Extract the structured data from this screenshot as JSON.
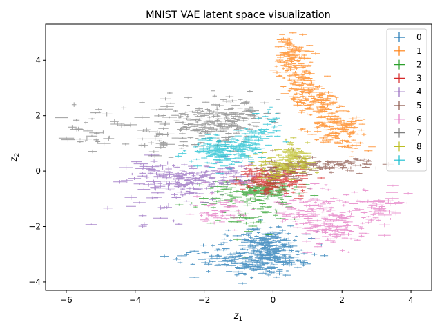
{
  "chart_data": {
    "type": "scatter",
    "title": "MNIST VAE latent space visualization",
    "xlabel_main": "z",
    "xlabel_sub": "1",
    "ylabel_main": "z",
    "ylabel_sub": "2",
    "xlim": [
      -6.6,
      4.6
    ],
    "ylim": [
      -4.3,
      5.3
    ],
    "xticks": [
      -6,
      -4,
      -2,
      0,
      2,
      4
    ],
    "yticks": [
      -4,
      -2,
      0,
      2,
      4
    ],
    "grid": false,
    "legend_position": "top-right",
    "marker": "errorbar-cross",
    "series": [
      {
        "name": "0",
        "color": "#1f77b4",
        "clusters": [
          {
            "cx": 0.0,
            "cy": -3.0,
            "sx": 0.45,
            "sy": 0.35,
            "n": 260
          },
          {
            "cx": -1.0,
            "cy": -3.2,
            "sx": 0.45,
            "sy": 0.25,
            "n": 110
          },
          {
            "cx": -0.3,
            "cy": -2.4,
            "sx": 0.5,
            "sy": 0.3,
            "n": 70
          },
          {
            "cx": -2.2,
            "cy": -3.1,
            "sx": 0.4,
            "sy": 0.25,
            "n": 20
          }
        ]
      },
      {
        "name": "1",
        "color": "#ff7f0e",
        "clusters": [
          {
            "cx": 0.55,
            "cy": 4.1,
            "sx": 0.22,
            "sy": 0.4,
            "n": 110
          },
          {
            "cx": 0.9,
            "cy": 3.2,
            "sx": 0.25,
            "sy": 0.35,
            "n": 90
          },
          {
            "cx": 1.35,
            "cy": 2.5,
            "sx": 0.3,
            "sy": 0.3,
            "n": 90
          },
          {
            "cx": 1.8,
            "cy": 1.7,
            "sx": 0.4,
            "sy": 0.3,
            "n": 100
          },
          {
            "cx": 2.3,
            "cy": 1.2,
            "sx": 0.3,
            "sy": 0.3,
            "n": 40
          }
        ]
      },
      {
        "name": "2",
        "color": "#2ca02c",
        "clusters": [
          {
            "cx": -0.3,
            "cy": -0.7,
            "sx": 0.45,
            "sy": 0.2,
            "n": 150
          },
          {
            "cx": -1.2,
            "cy": -0.9,
            "sx": 0.6,
            "sy": 0.3,
            "n": 60
          },
          {
            "cx": -0.6,
            "cy": -1.7,
            "sx": 0.6,
            "sy": 0.35,
            "n": 40
          }
        ]
      },
      {
        "name": "3",
        "color": "#d62728",
        "clusters": [
          {
            "cx": -0.2,
            "cy": -0.3,
            "sx": 0.4,
            "sy": 0.2,
            "n": 160
          },
          {
            "cx": 0.4,
            "cy": -0.5,
            "sx": 0.3,
            "sy": 0.25,
            "n": 50
          }
        ]
      },
      {
        "name": "4",
        "color": "#9467bd",
        "clusters": [
          {
            "cx": -2.6,
            "cy": -0.3,
            "sx": 0.5,
            "sy": 0.25,
            "n": 90
          },
          {
            "cx": -1.4,
            "cy": -0.2,
            "sx": 0.5,
            "sy": 0.25,
            "n": 80
          },
          {
            "cx": -3.5,
            "cy": -0.2,
            "sx": 0.4,
            "sy": 0.3,
            "n": 25
          },
          {
            "cx": -2.8,
            "cy": -1.2,
            "sx": 0.8,
            "sy": 0.5,
            "n": 30
          }
        ]
      },
      {
        "name": "5",
        "color": "#8c564b",
        "clusters": [
          {
            "cx": 0.3,
            "cy": 0.1,
            "sx": 0.4,
            "sy": 0.25,
            "n": 90
          },
          {
            "cx": 1.6,
            "cy": 0.15,
            "sx": 0.55,
            "sy": 0.12,
            "n": 70
          },
          {
            "cx": 2.4,
            "cy": 0.3,
            "sx": 0.25,
            "sy": 0.1,
            "n": 20
          }
        ]
      },
      {
        "name": "6",
        "color": "#e377c2",
        "clusters": [
          {
            "cx": 1.7,
            "cy": -2.0,
            "sx": 0.4,
            "sy": 0.35,
            "n": 120
          },
          {
            "cx": 1.0,
            "cy": -1.4,
            "sx": 0.45,
            "sy": 0.35,
            "n": 80
          },
          {
            "cx": 2.7,
            "cy": -1.5,
            "sx": 0.5,
            "sy": 0.35,
            "n": 60
          },
          {
            "cx": -1.6,
            "cy": -1.4,
            "sx": 0.4,
            "sy": 0.35,
            "n": 60
          },
          {
            "cx": 3.4,
            "cy": -1.1,
            "sx": 0.3,
            "sy": 0.2,
            "n": 15
          }
        ]
      },
      {
        "name": "7",
        "color": "#7f7f7f",
        "clusters": [
          {
            "cx": -1.8,
            "cy": 1.7,
            "sx": 0.6,
            "sy": 0.35,
            "n": 160
          },
          {
            "cx": -0.9,
            "cy": 2.1,
            "sx": 0.45,
            "sy": 0.3,
            "n": 70
          },
          {
            "cx": -3.0,
            "cy": 1.4,
            "sx": 0.5,
            "sy": 0.5,
            "n": 50
          },
          {
            "cx": -4.8,
            "cy": 1.5,
            "sx": 0.6,
            "sy": 0.45,
            "n": 30
          },
          {
            "cx": -5.7,
            "cy": 1.2,
            "sx": 0.3,
            "sy": 0.5,
            "n": 8
          }
        ]
      },
      {
        "name": "8",
        "color": "#bcbd22",
        "clusters": [
          {
            "cx": 0.3,
            "cy": 0.2,
            "sx": 0.4,
            "sy": 0.25,
            "n": 130
          },
          {
            "cx": 0.7,
            "cy": 0.6,
            "sx": 0.2,
            "sy": 0.25,
            "n": 60
          }
        ]
      },
      {
        "name": "9",
        "color": "#17becf",
        "clusters": [
          {
            "cx": -1.4,
            "cy": 0.7,
            "sx": 0.45,
            "sy": 0.25,
            "n": 170
          },
          {
            "cx": -0.6,
            "cy": 1.1,
            "sx": 0.35,
            "sy": 0.25,
            "n": 60
          },
          {
            "cx": -0.2,
            "cy": 1.7,
            "sx": 0.2,
            "sy": 0.3,
            "n": 25
          }
        ]
      }
    ]
  }
}
